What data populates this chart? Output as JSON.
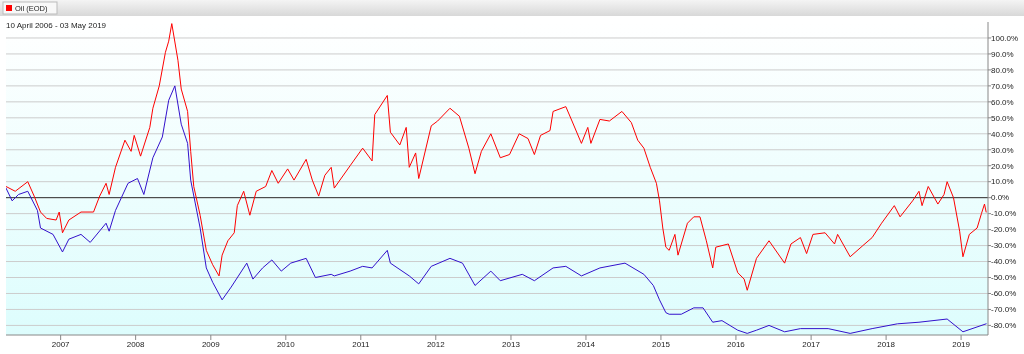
{
  "chart_data": {
    "type": "line",
    "subtitle": "10 April 2006 - 03 May 2019",
    "xlim": [
      "2006-04-10",
      "2019-05-12"
    ],
    "xticks": [
      {
        "value": "2007-01-01",
        "label": "2007"
      },
      {
        "value": "2008-01-01",
        "label": "2008"
      },
      {
        "value": "2009-01-01",
        "label": "2009"
      },
      {
        "value": "2010-01-01",
        "label": "2010"
      },
      {
        "value": "2011-01-01",
        "label": "2011"
      },
      {
        "value": "2012-01-01",
        "label": "2012"
      },
      {
        "value": "2013-01-01",
        "label": "2013"
      },
      {
        "value": "2014-01-01",
        "label": "2014"
      },
      {
        "value": "2015-01-01",
        "label": "2015"
      },
      {
        "value": "2016-01-01",
        "label": "2016"
      },
      {
        "value": "2017-01-01",
        "label": "2017"
      },
      {
        "value": "2018-01-01",
        "label": "2018"
      },
      {
        "value": "2019-01-01",
        "label": "2019"
      }
    ],
    "ylim": [
      -86,
      110
    ],
    "yticks": [
      {
        "value": -80,
        "label": "-80.0%"
      },
      {
        "value": -70,
        "label": "-70.0%"
      },
      {
        "value": -60,
        "label": "-60.0%"
      },
      {
        "value": -50,
        "label": "-50.0%"
      },
      {
        "value": -40,
        "label": "-40.0%"
      },
      {
        "value": -30,
        "label": "-30.0%"
      },
      {
        "value": -20,
        "label": "-20.0%"
      },
      {
        "value": -10,
        "label": "-10.0%"
      },
      {
        "value": 0,
        "label": "0.0%"
      },
      {
        "value": 10,
        "label": "10.0%"
      },
      {
        "value": 20,
        "label": "20.0%"
      },
      {
        "value": 30,
        "label": "30.0%"
      },
      {
        "value": 40,
        "label": "40.0%"
      },
      {
        "value": 50,
        "label": "50.0%"
      },
      {
        "value": 60,
        "label": "60.0%"
      },
      {
        "value": 70,
        "label": "70.0%"
      },
      {
        "value": 80,
        "label": "80.0%"
      },
      {
        "value": 90,
        "label": "90.0%"
      },
      {
        "value": 100,
        "label": "100.0%"
      }
    ],
    "grid": "y",
    "legend": "top left",
    "ref_lines": [
      {
        "axis": "y",
        "value": 0,
        "color": "#333333"
      }
    ],
    "series": [
      {
        "name": "Oil (EOD)",
        "color": "#ff0000",
        "x": [
          "2006-04-10",
          "2006-05-25",
          "2006-07-25",
          "2006-08-25",
          "2006-09-25",
          "2006-10-25",
          "2006-12-10",
          "2006-12-25",
          "2007-01-10",
          "2007-02-10",
          "2007-04-10",
          "2007-06-10",
          "2007-07-10",
          "2007-08-10",
          "2007-08-25",
          "2007-09-25",
          "2007-11-10",
          "2007-12-10",
          "2007-12-25",
          "2008-01-25",
          "2008-03-10",
          "2008-03-25",
          "2008-04-25",
          "2008-05-25",
          "2008-06-10",
          "2008-06-25",
          "2008-07-25",
          "2008-08-10",
          "2008-09-10",
          "2008-09-25",
          "2008-10-10",
          "2008-11-10",
          "2008-12-10",
          "2009-01-10",
          "2009-02-10",
          "2009-02-25",
          "2009-03-25",
          "2009-04-25",
          "2009-05-10",
          "2009-06-10",
          "2009-07-10",
          "2009-08-10",
          "2009-09-25",
          "2009-10-25",
          "2009-11-25",
          "2010-01-10",
          "2010-02-10",
          "2010-04-10",
          "2010-05-10",
          "2010-06-10",
          "2010-07-10",
          "2010-08-10",
          "2010-08-25",
          "2010-11-10",
          "2011-01-10",
          "2011-02-25",
          "2011-03-10",
          "2011-05-10",
          "2011-05-25",
          "2011-07-10",
          "2011-08-10",
          "2011-08-25",
          "2011-09-25",
          "2011-10-10",
          "2011-12-10",
          "2012-01-10",
          "2012-03-10",
          "2012-04-25",
          "2012-06-10",
          "2012-07-10",
          "2012-08-10",
          "2012-09-25",
          "2012-11-10",
          "2012-12-25",
          "2013-02-10",
          "2013-03-25",
          "2013-04-25",
          "2013-05-25",
          "2013-07-10",
          "2013-07-25",
          "2013-09-25",
          "2013-10-25",
          "2013-12-10",
          "2014-01-10",
          "2014-01-25",
          "2014-03-10",
          "2014-04-25",
          "2014-06-25",
          "2014-08-10",
          "2014-09-10",
          "2014-10-10",
          "2014-11-10",
          "2014-12-10",
          "2014-12-25",
          "2015-01-10",
          "2015-01-25",
          "2015-02-10",
          "2015-03-10",
          "2015-03-25",
          "2015-05-10",
          "2015-06-10",
          "2015-07-10",
          "2015-08-10",
          "2015-09-10",
          "2015-09-25",
          "2015-11-25",
          "2016-01-10",
          "2016-02-10",
          "2016-02-25",
          "2016-04-10",
          "2016-06-10",
          "2016-08-25",
          "2016-09-25",
          "2016-11-10",
          "2016-12-10",
          "2017-01-10",
          "2017-03-10",
          "2017-04-25",
          "2017-05-10",
          "2017-07-10",
          "2017-09-10",
          "2017-10-25",
          "2017-12-10",
          "2018-02-10",
          "2018-03-10",
          "2018-05-10",
          "2018-06-10",
          "2018-06-25",
          "2018-07-25",
          "2018-09-10",
          "2018-10-10",
          "2018-10-25",
          "2018-11-25",
          "2018-12-25",
          "2019-01-10",
          "2019-02-10",
          "2019-03-20",
          "2019-04-10",
          "2019-04-25",
          "2019-05-03"
        ],
        "values": [
          7,
          4,
          10,
          1,
          -9,
          -13,
          -14,
          -9,
          -22,
          -14,
          -9,
          -9,
          1,
          9,
          2,
          19,
          36,
          29,
          39,
          26,
          44,
          56,
          70,
          91,
          98,
          109,
          86,
          68,
          54,
          29,
          7,
          -11,
          -33,
          -42,
          -49,
          -36,
          -27,
          -22,
          -5,
          4,
          -11,
          4,
          7,
          17,
          9,
          18,
          11,
          24,
          11,
          1,
          14,
          19,
          6,
          20,
          31,
          23,
          52,
          64,
          41,
          33,
          44,
          19,
          28,
          12,
          45,
          48,
          56,
          51,
          31,
          15,
          29,
          40,
          25,
          27,
          40,
          37,
          27,
          39,
          42,
          54,
          57,
          48,
          34,
          44,
          34,
          49,
          48,
          54,
          47,
          36,
          31,
          19,
          9,
          -2,
          -19,
          -31,
          -33,
          -23,
          -36,
          -16,
          -12,
          -12,
          -27,
          -44,
          -31,
          -29,
          -47,
          -51,
          -58,
          -38,
          -27,
          -41,
          -29,
          -25,
          -35,
          -23,
          -22,
          -29,
          -23,
          -37,
          -30,
          -25,
          -16,
          -5,
          -12,
          -2,
          4,
          -5,
          7,
          -4,
          2,
          10,
          0,
          -21,
          -37,
          -23,
          -19,
          -10,
          -4,
          -9
        ]
      },
      {
        "color": "#3311cc",
        "x": [
          "2006-04-10",
          "2006-05-10",
          "2006-06-10",
          "2006-07-25",
          "2006-09-10",
          "2006-09-25",
          "2006-11-25",
          "2007-01-10",
          "2007-02-10",
          "2007-04-10",
          "2007-05-25",
          "2007-08-10",
          "2007-08-25",
          "2007-09-25",
          "2007-11-25",
          "2008-01-10",
          "2008-02-10",
          "2008-03-25",
          "2008-05-10",
          "2008-06-10",
          "2008-07-10",
          "2008-08-10",
          "2008-09-10",
          "2008-09-25",
          "2008-11-10",
          "2008-12-10",
          "2009-01-10",
          "2009-02-25",
          "2009-04-10",
          "2009-06-25",
          "2009-07-25",
          "2009-09-10",
          "2009-10-25",
          "2009-12-10",
          "2010-01-25",
          "2010-04-10",
          "2010-05-25",
          "2010-08-10",
          "2010-08-25",
          "2010-11-10",
          "2011-01-10",
          "2011-02-25",
          "2011-05-10",
          "2011-05-25",
          "2011-08-25",
          "2011-10-10",
          "2011-12-10",
          "2012-03-10",
          "2012-05-10",
          "2012-07-10",
          "2012-09-25",
          "2012-11-10",
          "2013-02-25",
          "2013-04-25",
          "2013-07-25",
          "2013-09-25",
          "2013-12-10",
          "2014-03-10",
          "2014-07-10",
          "2014-10-10",
          "2014-11-25",
          "2014-12-25",
          "2015-01-25",
          "2015-02-10",
          "2015-04-10",
          "2015-06-10",
          "2015-07-25",
          "2015-09-10",
          "2015-10-25",
          "2016-01-10",
          "2016-02-25",
          "2016-04-10",
          "2016-06-10",
          "2016-08-25",
          "2016-11-10",
          "2017-03-25",
          "2017-07-10",
          "2017-10-25",
          "2018-02-25",
          "2018-06-10",
          "2018-10-25",
          "2019-01-10",
          "2019-05-03"
        ],
        "values": [
          6,
          -2,
          2,
          4,
          -8,
          -19,
          -23,
          -34,
          -26,
          -23,
          -28,
          -16,
          -21,
          -8,
          9,
          12,
          2,
          25,
          38,
          61,
          70,
          46,
          34,
          11,
          -19,
          -44,
          -53,
          -64,
          -56,
          -41,
          -51,
          -44,
          -39,
          -46,
          -41,
          -38,
          -50,
          -48,
          -49,
          -46,
          -43,
          -44,
          -33,
          -41,
          -49,
          -54,
          -43,
          -38,
          -41,
          -55,
          -46,
          -52,
          -48,
          -52,
          -44,
          -43,
          -49,
          -44,
          -41,
          -48,
          -55,
          -64,
          -72,
          -73,
          -73,
          -69,
          -69,
          -78,
          -77,
          -83,
          -85,
          -83,
          -80,
          -84,
          -82,
          -82,
          -85,
          -82,
          -79,
          -78,
          -76,
          -84,
          -79
        ]
      }
    ]
  }
}
